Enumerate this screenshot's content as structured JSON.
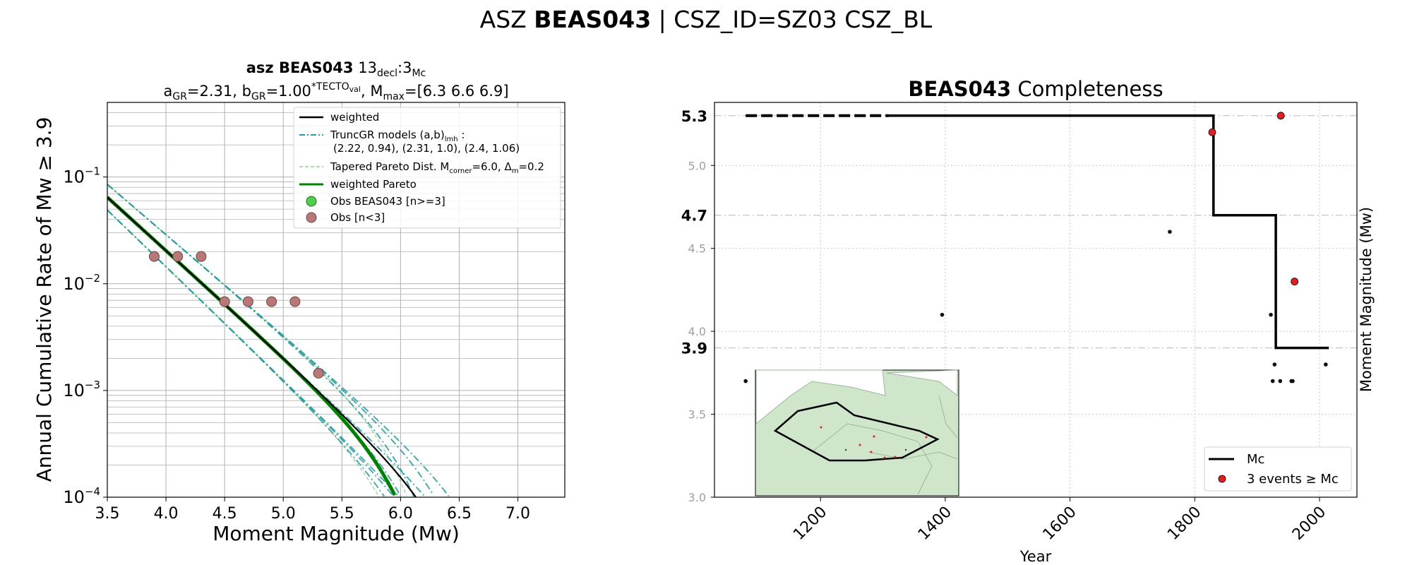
{
  "figure": {
    "suptitle_prefix": "ASZ ",
    "suptitle_bold": "BEAS043",
    "suptitle_suffix": " | CSZ_ID=SZ03 CSZ_BL"
  },
  "chart_data": [
    {
      "type": "line",
      "title_line1": {
        "bold": "asz BEAS043",
        "text": "13",
        "sub1": "decl",
        "mid": ":3",
        "sub2": "Mc"
      },
      "title_line2": {
        "a": "a",
        "a_sub": "GR",
        "a_val": "=2.31,",
        "b": "b",
        "b_sub": "GR",
        "b_val": "=1.00",
        "b_sup": "*TECTO",
        "b_supsub": "val",
        "m": ", M",
        "m_sub": "max",
        "m_val": "=[6.3 6.6 6.9]"
      },
      "xlabel": "Moment Magnitude (Mw)",
      "ylabel": "Annual Cumulative Rate of Mw ≥ 3.9",
      "xlim": [
        3.5,
        7.4
      ],
      "ylim": [
        0.0001,
        0.5
      ],
      "yscale": "log",
      "grid": true,
      "x_ticks": [
        "3.5",
        "4.0",
        "4.5",
        "5.0",
        "5.5",
        "6.0",
        "6.5",
        "7.0"
      ],
      "y_ticks": [
        {
          "base": "10",
          "exp": "−1",
          "value": 0.1
        },
        {
          "base": "10",
          "exp": "−2",
          "value": 0.01
        },
        {
          "base": "10",
          "exp": "−3",
          "value": 0.001
        },
        {
          "base": "10",
          "exp": "−4",
          "value": 0.0001
        }
      ],
      "legend": {
        "placement": "top-right",
        "entries": [
          {
            "label": "weighted",
            "style": "black-solid"
          },
          {
            "label": "TruncGR models (a,b)",
            "sub": "lmh",
            "suffix": " :",
            "line2": "(2.22, 0.94), (2.31, 1.0), (2.4, 1.06)",
            "style": "teal-dashdot"
          },
          {
            "label": "Tapered Pareto Dist. M",
            "sub": "corner",
            "suffix": "=6.0, Δ",
            "sub2": "m",
            "suffix2": "=0.2",
            "style": "lightgreen-dashed"
          },
          {
            "label": "weighted Pareto",
            "style": "green-solid"
          },
          {
            "label": "Obs BEAS043 [n>=3]",
            "style": "green-marker"
          },
          {
            "label": "Obs [n<3]",
            "style": "rosy-marker"
          }
        ]
      },
      "series": [
        {
          "label_key": "weighted",
          "m0": 3.9,
          "a": 2.31,
          "b": 1.0,
          "mmax": 6.6,
          "color": "#000000"
        },
        {
          "label_key": "weighted Pareto",
          "m0": 3.9,
          "a": 2.31,
          "b": 1.0,
          "mcorner": 6.0,
          "color": "#008000"
        },
        {
          "label_key": "TruncGR models",
          "models": [
            {
              "a": 2.22,
              "b": 0.94,
              "mmax": [
                6.3,
                6.6,
                6.9
              ]
            },
            {
              "a": 2.31,
              "b": 1.0,
              "mmax": [
                6.3,
                6.6,
                6.9
              ]
            },
            {
              "a": 2.4,
              "b": 1.06,
              "mmax": [
                6.3,
                6.6,
                6.9
              ]
            }
          ],
          "color": "#2a9a9e"
        },
        {
          "label_key": "Tapered Pareto",
          "mcorner": 6.0,
          "color": "#8fd18f"
        }
      ],
      "observations": [
        {
          "x": 3.9,
          "y": 0.018
        },
        {
          "x": 4.1,
          "y": 0.018
        },
        {
          "x": 4.3,
          "y": 0.018
        },
        {
          "x": 4.5,
          "y": 0.0068
        },
        {
          "x": 4.7,
          "y": 0.0068
        },
        {
          "x": 4.9,
          "y": 0.0068
        },
        {
          "x": 5.1,
          "y": 0.0068
        },
        {
          "x": 5.3,
          "y": 0.00145
        }
      ],
      "colors": {
        "obs_fill": "#b87878",
        "obs_edge": "#6e4444",
        "obs_good": "#4cd04c",
        "grid": "#b0b0b0"
      }
    },
    {
      "type": "scatter",
      "title_bold": "BEAS043",
      "title_text": " Completeness",
      "xlabel": "Year",
      "ylabel": "Moment Magnitude (Mw)",
      "xlim": [
        1030,
        2060
      ],
      "ylim": [
        3.0,
        5.38
      ],
      "x_ticks": [
        "1200",
        "1400",
        "1600",
        "1800",
        "2000"
      ],
      "y_ticks": [
        "3.0",
        "3.5",
        "4.0",
        "4.5",
        "5.0"
      ],
      "y_bold_ticks": [
        "5.3",
        "4.7",
        "3.9"
      ],
      "grid": true,
      "mc_step": [
        {
          "x": 1310,
          "y": 5.3
        },
        {
          "x": 1830,
          "y": 5.3
        },
        {
          "x": 1830,
          "y": 4.7
        },
        {
          "x": 1930,
          "y": 4.7
        },
        {
          "x": 1930,
          "y": 3.9
        },
        {
          "x": 2015,
          "y": 3.9
        }
      ],
      "mc_dashed": [
        {
          "x": 1080,
          "y": 5.3
        },
        {
          "x": 1310,
          "y": 5.3
        }
      ],
      "small_events": [
        {
          "x": 1080,
          "y": 3.7
        },
        {
          "x": 1395,
          "y": 4.1
        },
        {
          "x": 1760,
          "y": 4.6
        },
        {
          "x": 1922,
          "y": 4.1
        },
        {
          "x": 1928,
          "y": 3.8
        },
        {
          "x": 1925,
          "y": 3.7
        },
        {
          "x": 1937,
          "y": 3.7
        },
        {
          "x": 1955,
          "y": 3.7
        },
        {
          "x": 1957,
          "y": 3.7
        },
        {
          "x": 2010,
          "y": 3.8
        }
      ],
      "mc_events": [
        {
          "x": 1828,
          "y": 5.2
        },
        {
          "x": 1938,
          "y": 5.3
        },
        {
          "x": 1960,
          "y": 4.3
        }
      ],
      "legend": {
        "placement": "bottom-right",
        "entries": [
          {
            "label": "Mc",
            "style": "black-line"
          },
          {
            "label": "3 events ≥ Mc",
            "style": "red-marker"
          }
        ]
      },
      "colors": {
        "event_red": "#e02020",
        "map_land": "#cfe6cb",
        "map_sea": "#ffffff",
        "border": "#98b898"
      }
    }
  ]
}
